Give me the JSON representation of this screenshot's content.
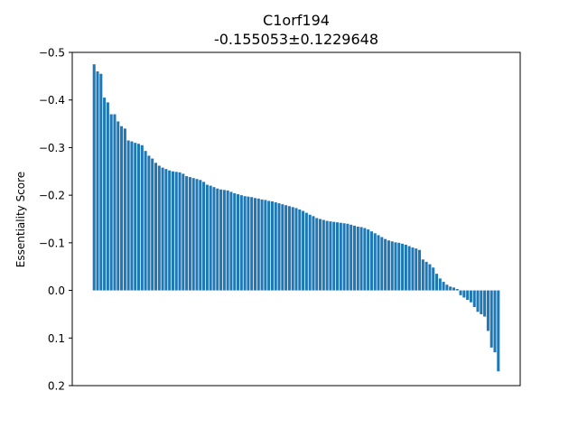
{
  "chart_data": {
    "type": "bar",
    "title": "C1orf194",
    "subtitle": "-0.155053±0.1229648",
    "xlabel": "",
    "ylabel": "Essentiality Score",
    "y_inverted": true,
    "ylim": [
      -0.5,
      0.2
    ],
    "yticks": [
      -0.5,
      -0.4,
      -0.3,
      -0.2,
      -0.1,
      0.0,
      0.1,
      0.2
    ],
    "ytick_labels": [
      "−0.5",
      "−0.4",
      "−0.3",
      "−0.2",
      "−0.1",
      "0.0",
      "0.1",
      "0.2"
    ],
    "grid": false,
    "bar_color": "#1f77b4",
    "values": [
      -0.475,
      -0.46,
      -0.455,
      -0.405,
      -0.395,
      -0.37,
      -0.37,
      -0.355,
      -0.345,
      -0.34,
      -0.315,
      -0.313,
      -0.31,
      -0.308,
      -0.305,
      -0.293,
      -0.283,
      -0.277,
      -0.268,
      -0.262,
      -0.258,
      -0.255,
      -0.252,
      -0.25,
      -0.249,
      -0.248,
      -0.245,
      -0.24,
      -0.238,
      -0.236,
      -0.234,
      -0.232,
      -0.228,
      -0.222,
      -0.22,
      -0.217,
      -0.214,
      -0.212,
      -0.211,
      -0.21,
      -0.207,
      -0.204,
      -0.202,
      -0.2,
      -0.198,
      -0.197,
      -0.196,
      -0.194,
      -0.193,
      -0.191,
      -0.19,
      -0.188,
      -0.187,
      -0.185,
      -0.183,
      -0.181,
      -0.179,
      -0.177,
      -0.175,
      -0.173,
      -0.17,
      -0.167,
      -0.163,
      -0.159,
      -0.156,
      -0.152,
      -0.15,
      -0.148,
      -0.146,
      -0.145,
      -0.144,
      -0.143,
      -0.142,
      -0.141,
      -0.14,
      -0.138,
      -0.136,
      -0.134,
      -0.133,
      -0.131,
      -0.128,
      -0.124,
      -0.12,
      -0.116,
      -0.112,
      -0.108,
      -0.105,
      -0.103,
      -0.101,
      -0.1,
      -0.098,
      -0.096,
      -0.093,
      -0.09,
      -0.088,
      -0.085,
      -0.065,
      -0.06,
      -0.055,
      -0.048,
      -0.035,
      -0.025,
      -0.018,
      -0.012,
      -0.008,
      -0.006,
      -0.003,
      0.01,
      0.015,
      0.02,
      0.025,
      0.035,
      0.045,
      0.05,
      0.055,
      0.085,
      0.12,
      0.13,
      0.17
    ]
  }
}
